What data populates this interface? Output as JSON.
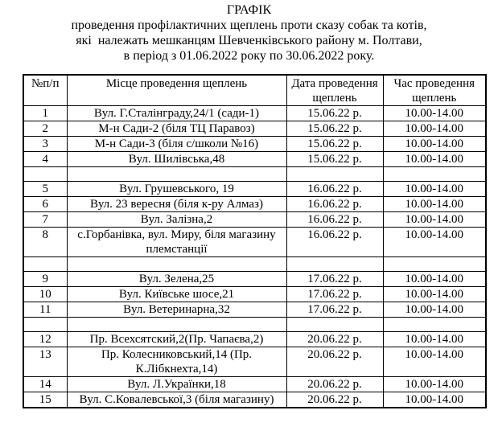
{
  "document": {
    "title_lines": [
      "ГРАФІК",
      "проведення профілактичних щеплень проти сказу собак та котів,",
      "які  належать мешканцям Шевченківського району м. Полтави,",
      "в період з 01.06.2022 року по 30.06.2022 року."
    ],
    "colors": {
      "background": "#ffffff",
      "text": "#000000",
      "border": "#000000"
    }
  },
  "table": {
    "headers": [
      "№п/п",
      "Місце проведення щеплень",
      "Дата проведення щеплень",
      "Час проведення щеплень"
    ],
    "rows": [
      [
        "1",
        "Вул. Г.Сталінграду,24/1 (сади-1)",
        "15.06.22 р.",
        "10.00-14.00"
      ],
      [
        "2",
        "М-н Сади-2 (біля ТЦ Паравоз)",
        "15.06.22 р.",
        "10.00-14.00"
      ],
      [
        "3",
        "М-н Сади-3 (біля с/школи №16)",
        "15.06.22 р.",
        "10.00-14.00"
      ],
      [
        "4",
        "Вул. Шилівська,48",
        "15.06.22 р.",
        "10.00-14.00"
      ],
      [
        "",
        "",
        "",
        ""
      ],
      [
        "5",
        "Вул. Грушевського, 19",
        "16.06.22 р.",
        "10.00-14.00"
      ],
      [
        "6",
        "Вул. 23 вересня (біля к-ру Алмаз)",
        "16.06.22 р.",
        "10.00-14.00"
      ],
      [
        "7",
        "Вул. Залізна,2",
        "16.06.22 р.",
        "10.00-14.00"
      ],
      [
        "8",
        "с.Горбанівка, вул. Миру, біля магазину племстанції",
        "16.06.22 р.",
        "10.00-14.00"
      ],
      [
        "",
        "",
        "",
        ""
      ],
      [
        "9",
        "Вул. Зелена,25",
        "17.06.22 р.",
        "10.00-14.00"
      ],
      [
        "10",
        "Вул. Київське шосе,21",
        "17.06.22 р.",
        "10.00-14.00"
      ],
      [
        "11",
        "Вул. Ветеринарна,32",
        "17.06.22 р.",
        "10.00-14.00"
      ],
      [
        "",
        "",
        "",
        ""
      ],
      [
        "12",
        "Пр. Всехсятский,2(Пр. Чапаєва,2)",
        "20.06.22 р.",
        "10.00-14.00"
      ],
      [
        "13",
        "Пр. Колесниковський,14 (Пр. К.Лібкнехта,14)",
        "20.06.22 р.",
        "10.00-14.00"
      ],
      [
        "14",
        "Вул. Л.Українки,18",
        "20.06.22 р.",
        "10.00-14.00"
      ],
      [
        "15",
        "Вул. С.Ковалевської,3 (біля магазину)",
        "20.06.22 р.",
        "10.00-14.00"
      ]
    ]
  }
}
